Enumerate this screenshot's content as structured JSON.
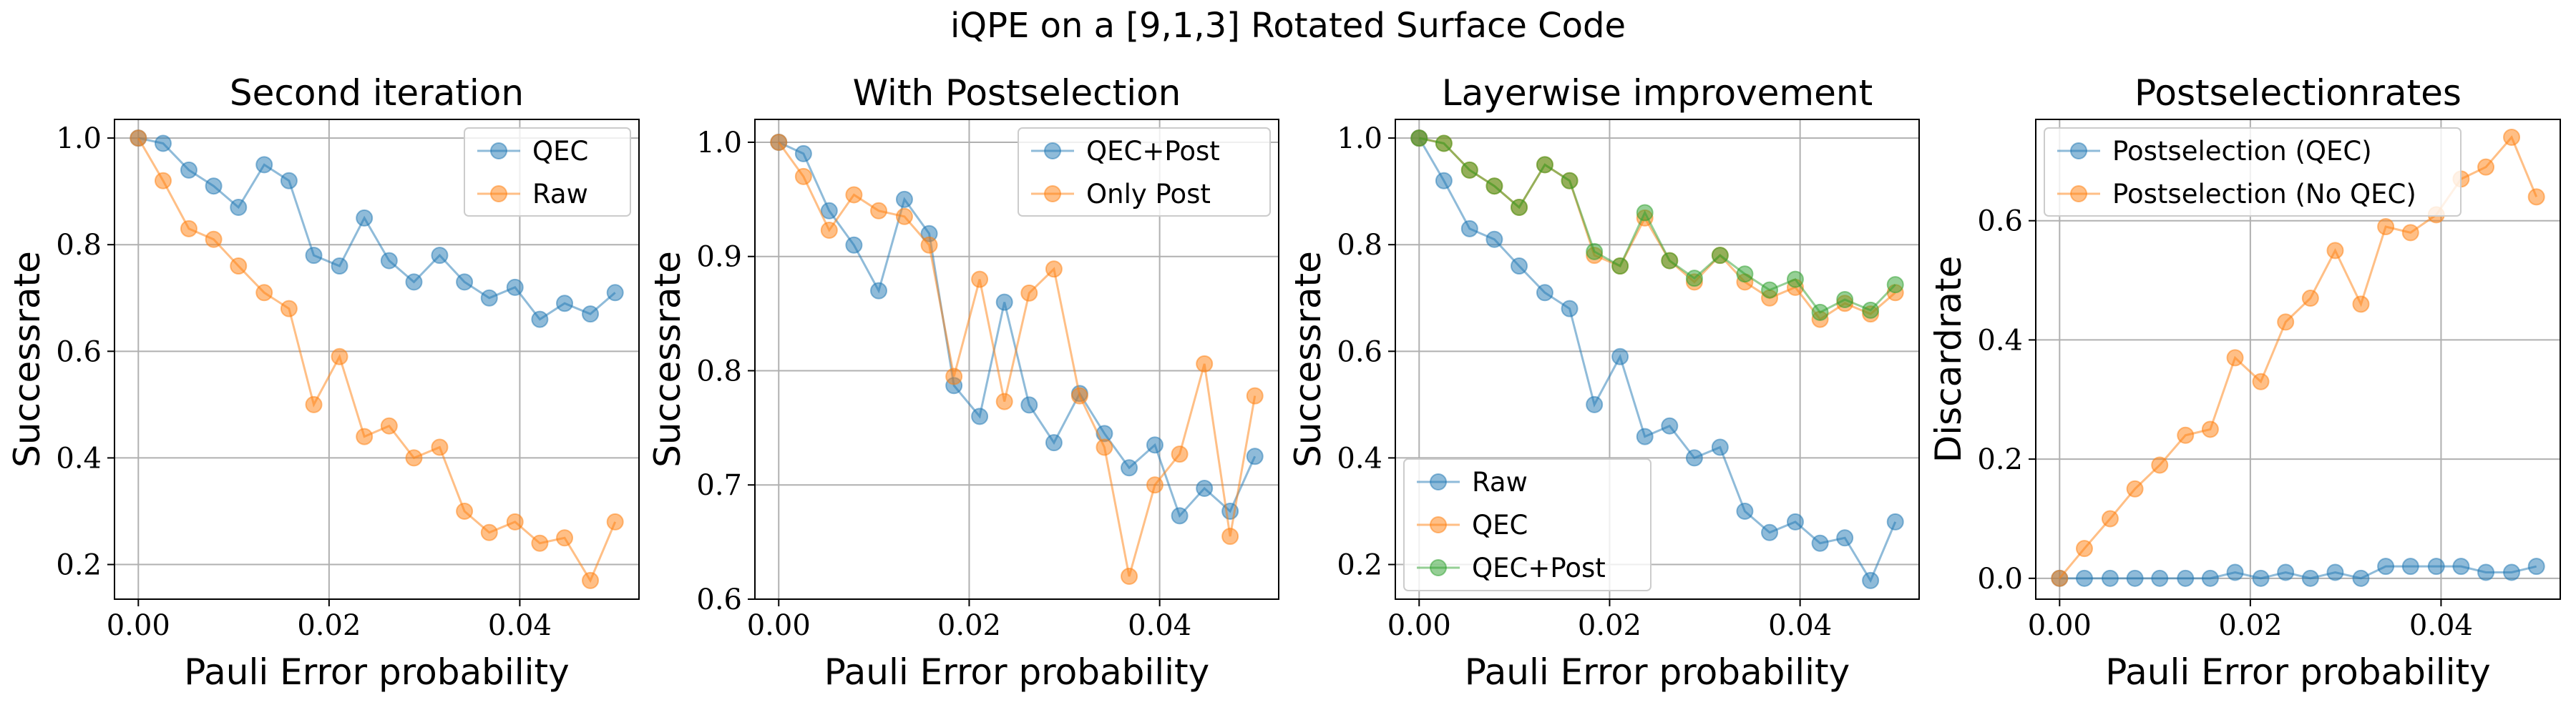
{
  "figure": {
    "suptitle": "iQPE on a [9,1,3] Rotated Surface Code"
  },
  "colors": {
    "blue": "#1f77b4",
    "orange": "#ff7f0e",
    "green": "#2ca02c",
    "grid": "#b0b0b0"
  },
  "chart_data": [
    {
      "type": "line",
      "title": "Second iteration",
      "xlabel": "Pauli Error probability",
      "ylabel": "Successrate",
      "xlim": [
        -0.0025,
        0.0525
      ],
      "ylim": [
        0.135,
        1.035
      ],
      "xticks": [
        0.0,
        0.02,
        0.04
      ],
      "xtick_labels": [
        "0.00",
        "0.02",
        "0.04"
      ],
      "yticks": [
        0.2,
        0.4,
        0.6,
        0.8,
        1.0
      ],
      "ytick_labels": [
        "0.2",
        "0.4",
        "0.6",
        "0.8",
        "1.0"
      ],
      "grid": true,
      "legend_position": "upper-right",
      "x": [
        0.0,
        0.0026,
        0.0053,
        0.0079,
        0.0105,
        0.0132,
        0.0158,
        0.0184,
        0.0211,
        0.0237,
        0.0263,
        0.0289,
        0.0316,
        0.0342,
        0.0368,
        0.0395,
        0.0421,
        0.0447,
        0.0474,
        0.05
      ],
      "series": [
        {
          "name": "QEC",
          "color": "blue",
          "values": [
            1.0,
            0.99,
            0.94,
            0.91,
            0.87,
            0.95,
            0.92,
            0.78,
            0.76,
            0.85,
            0.77,
            0.73,
            0.78,
            0.73,
            0.7,
            0.72,
            0.66,
            0.69,
            0.67,
            0.71
          ]
        },
        {
          "name": "Raw",
          "color": "orange",
          "values": [
            1.0,
            0.92,
            0.83,
            0.81,
            0.76,
            0.71,
            0.68,
            0.5,
            0.59,
            0.44,
            0.46,
            0.4,
            0.42,
            0.3,
            0.26,
            0.28,
            0.24,
            0.25,
            0.17,
            0.28
          ]
        }
      ]
    },
    {
      "type": "line",
      "title": "With Postselection",
      "xlabel": "Pauli Error probability",
      "ylabel": "Successrate",
      "xlim": [
        -0.0025,
        0.0525
      ],
      "ylim": [
        0.6,
        1.02
      ],
      "xticks": [
        0.0,
        0.02,
        0.04
      ],
      "xtick_labels": [
        "0.00",
        "0.02",
        "0.04"
      ],
      "yticks": [
        0.6,
        0.7,
        0.8,
        0.9,
        1.0
      ],
      "ytick_labels": [
        "0.6",
        "0.7",
        "0.8",
        "0.9",
        "1.0"
      ],
      "grid": true,
      "legend_position": "upper-right",
      "x": [
        0.0,
        0.0026,
        0.0053,
        0.0079,
        0.0105,
        0.0132,
        0.0158,
        0.0184,
        0.0211,
        0.0237,
        0.0263,
        0.0289,
        0.0316,
        0.0342,
        0.0368,
        0.0395,
        0.0421,
        0.0447,
        0.0474,
        0.05
      ],
      "series": [
        {
          "name": "QEC+Post",
          "color": "blue",
          "values": [
            1.0,
            0.99,
            0.94,
            0.91,
            0.87,
            0.95,
            0.92,
            0.787,
            0.76,
            0.86,
            0.77,
            0.737,
            0.78,
            0.745,
            0.715,
            0.735,
            0.673,
            0.697,
            0.677,
            0.725
          ]
        },
        {
          "name": "Only Post",
          "color": "orange",
          "values": [
            1.0,
            0.97,
            0.923,
            0.954,
            0.94,
            0.935,
            0.91,
            0.795,
            0.88,
            0.773,
            0.868,
            0.889,
            0.778,
            0.733,
            0.62,
            0.7,
            0.727,
            0.806,
            0.655,
            0.778
          ]
        }
      ]
    },
    {
      "type": "line",
      "title": "Layerwise improvement",
      "xlabel": "Pauli Error probability",
      "ylabel": "Successrate",
      "xlim": [
        -0.0025,
        0.0525
      ],
      "ylim": [
        0.135,
        1.035
      ],
      "xticks": [
        0.0,
        0.02,
        0.04
      ],
      "xtick_labels": [
        "0.00",
        "0.02",
        "0.04"
      ],
      "yticks": [
        0.2,
        0.4,
        0.6,
        0.8,
        1.0
      ],
      "ytick_labels": [
        "0.2",
        "0.4",
        "0.6",
        "0.8",
        "1.0"
      ],
      "grid": true,
      "legend_position": "lower-left",
      "x": [
        0.0,
        0.0026,
        0.0053,
        0.0079,
        0.0105,
        0.0132,
        0.0158,
        0.0184,
        0.0211,
        0.0237,
        0.0263,
        0.0289,
        0.0316,
        0.0342,
        0.0368,
        0.0395,
        0.0421,
        0.0447,
        0.0474,
        0.05
      ],
      "series": [
        {
          "name": "Raw",
          "color": "blue",
          "values": [
            1.0,
            0.92,
            0.83,
            0.81,
            0.76,
            0.71,
            0.68,
            0.5,
            0.59,
            0.44,
            0.46,
            0.4,
            0.42,
            0.3,
            0.26,
            0.28,
            0.24,
            0.25,
            0.17,
            0.28
          ]
        },
        {
          "name": "QEC",
          "color": "orange",
          "values": [
            1.0,
            0.99,
            0.94,
            0.91,
            0.87,
            0.95,
            0.92,
            0.78,
            0.76,
            0.85,
            0.77,
            0.73,
            0.78,
            0.73,
            0.7,
            0.72,
            0.66,
            0.69,
            0.67,
            0.71
          ]
        },
        {
          "name": "QEC+Post",
          "color": "green",
          "values": [
            1.0,
            0.99,
            0.94,
            0.91,
            0.87,
            0.95,
            0.92,
            0.787,
            0.76,
            0.86,
            0.77,
            0.737,
            0.78,
            0.745,
            0.715,
            0.735,
            0.673,
            0.697,
            0.677,
            0.725
          ]
        }
      ]
    },
    {
      "type": "line",
      "title": "Postselectionrates",
      "xlabel": "Pauli Error probability",
      "ylabel": "Discardrate",
      "xlim": [
        -0.0025,
        0.0525
      ],
      "ylim": [
        -0.035,
        0.77
      ],
      "xticks": [
        0.0,
        0.02,
        0.04
      ],
      "xtick_labels": [
        "0.00",
        "0.02",
        "0.04"
      ],
      "yticks": [
        0.0,
        0.2,
        0.4,
        0.6
      ],
      "ytick_labels": [
        "0.0",
        "0.2",
        "0.4",
        "0.6"
      ],
      "grid": true,
      "legend_position": "upper-left",
      "x": [
        0.0,
        0.0026,
        0.0053,
        0.0079,
        0.0105,
        0.0132,
        0.0158,
        0.0184,
        0.0211,
        0.0237,
        0.0263,
        0.0289,
        0.0316,
        0.0342,
        0.0368,
        0.0395,
        0.0421,
        0.0447,
        0.0474,
        0.05
      ],
      "series": [
        {
          "name": "Postselection (QEC)",
          "color": "blue",
          "values": [
            0.0,
            0.0,
            0.0,
            0.0,
            0.0,
            0.0,
            0.0,
            0.01,
            0.0,
            0.01,
            0.0,
            0.01,
            0.0,
            0.02,
            0.02,
            0.02,
            0.02,
            0.01,
            0.01,
            0.02
          ]
        },
        {
          "name": "Postselection (No QEC)",
          "color": "orange",
          "values": [
            0.0,
            0.05,
            0.1,
            0.15,
            0.19,
            0.24,
            0.25,
            0.37,
            0.33,
            0.43,
            0.47,
            0.55,
            0.46,
            0.59,
            0.58,
            0.61,
            0.67,
            0.69,
            0.74,
            0.64
          ]
        }
      ]
    }
  ]
}
